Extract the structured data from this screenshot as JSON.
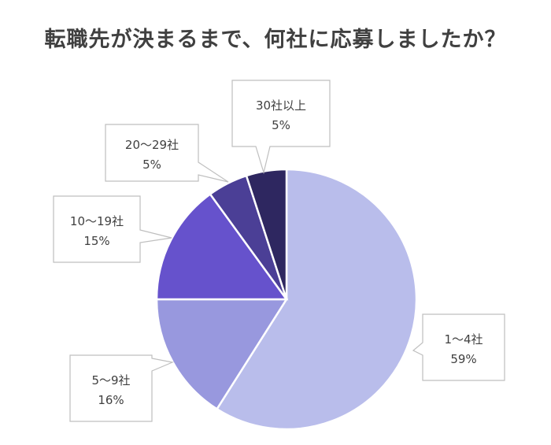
{
  "chart_data": {
    "type": "pie",
    "title": "転職先が決まるまで、何社に応募しましたか？",
    "slices": [
      {
        "label": "1〜4社",
        "value": 59,
        "value_label": "59%",
        "color": "#b9bdeb"
      },
      {
        "label": "5〜9社",
        "value": 16,
        "value_label": "16%",
        "color": "#9898de"
      },
      {
        "label": "10〜19社",
        "value": 15,
        "value_label": "15%",
        "color": "#6652cc"
      },
      {
        "label": "20〜29社",
        "value": 5,
        "value_label": "5%",
        "color": "#4b3f96"
      },
      {
        "label": "30社以上",
        "value": 5,
        "value_label": "5%",
        "color": "#2e2760"
      }
    ],
    "start_angle_deg": 0,
    "direction": "clockwise",
    "legend": "none",
    "data_labels": "callouts"
  }
}
